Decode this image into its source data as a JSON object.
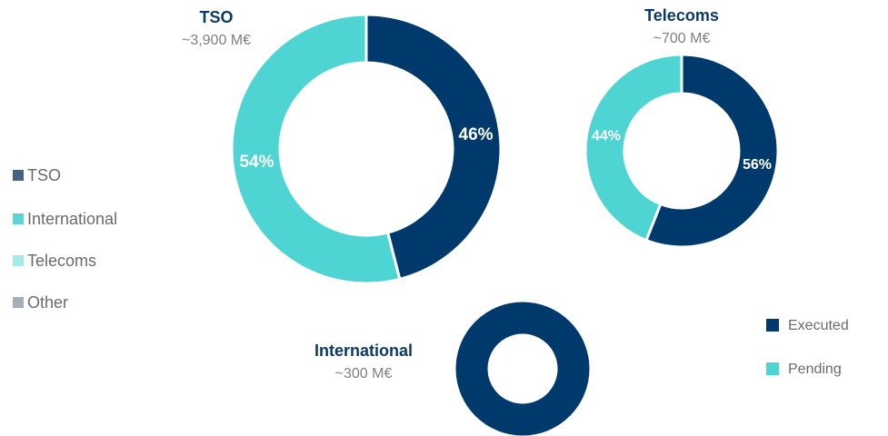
{
  "segment_legend": {
    "items": [
      {
        "name": "TSO",
        "color": "#44617f"
      },
      {
        "name": "International",
        "color": "#5dd3d3"
      },
      {
        "name": "Telecoms",
        "color": "#a9e8e8"
      },
      {
        "name": "Other",
        "color": "#a6adb4"
      }
    ]
  },
  "legend": {
    "items": [
      {
        "name": "Executed",
        "color": "#003a6c"
      },
      {
        "name": "Pending",
        "color": "#4fd4d4"
      }
    ]
  },
  "chart_data": [
    {
      "type": "donut",
      "title": "TSO",
      "subtitle": "~3,900 M€",
      "values": [
        46,
        54
      ],
      "value_labels": [
        "46%",
        "54%"
      ]
    },
    {
      "type": "donut",
      "title": "Telecoms",
      "subtitle": "~700 M€",
      "values": [
        56,
        44
      ],
      "value_labels": [
        "56%",
        "44%"
      ]
    },
    {
      "type": "donut",
      "title": "International",
      "subtitle": "~300 M€",
      "values": [
        100,
        0
      ]
    }
  ]
}
